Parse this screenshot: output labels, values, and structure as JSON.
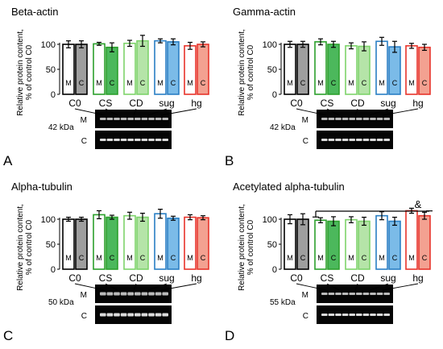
{
  "chart_data": [
    {
      "type": "bar",
      "panel_letter": "A",
      "title": "Beta-actin",
      "ylabel": [
        "Relative protein content,",
        "% of control C0"
      ],
      "ylim": [
        0,
        100
      ],
      "yticks": [
        "0",
        "50",
        "100"
      ],
      "categories": [
        "C0",
        "CS",
        "CD",
        "sug",
        "hg"
      ],
      "bar_labels": [
        "M",
        "C"
      ],
      "colors": [
        "#000000",
        "#2ca02c",
        "#7ed36b",
        "#2a7fc4",
        "#e8342b"
      ],
      "fills": [
        "#9e9e9e",
        "#4cb85c",
        "#b5e4a8",
        "#7bbbe8",
        "#f3a191"
      ],
      "series": [
        {
          "name": "M",
          "values": [
            100,
            101,
            102,
            107,
            97
          ],
          "errors": [
            7,
            3,
            6,
            4,
            7
          ]
        },
        {
          "name": "C",
          "values": [
            100,
            94,
            107,
            105,
            100
          ],
          "errors": [
            7,
            9,
            11,
            6,
            5
          ]
        }
      ],
      "blot": {
        "kda": "42 kDa",
        "rows": [
          "M",
          "C"
        ],
        "style": "light"
      }
    },
    {
      "type": "bar",
      "panel_letter": "B",
      "title": "Gamma-actin",
      "ylabel": [
        "Relative protein content,",
        "% of control C0"
      ],
      "ylim": [
        0,
        100
      ],
      "yticks": [
        "0",
        "50",
        "100"
      ],
      "categories": [
        "C0",
        "CS",
        "CD",
        "sug",
        "hg"
      ],
      "bar_labels": [
        "M",
        "C"
      ],
      "colors": [
        "#000000",
        "#2ca02c",
        "#7ed36b",
        "#2a7fc4",
        "#e8342b"
      ],
      "fills": [
        "#9e9e9e",
        "#4cb85c",
        "#b5e4a8",
        "#7bbbe8",
        "#f3a191"
      ],
      "series": [
        {
          "name": "M",
          "values": [
            100,
            105,
            97,
            106,
            97
          ],
          "errors": [
            6,
            6,
            6,
            8,
            5
          ]
        },
        {
          "name": "C",
          "values": [
            100,
            100,
            96,
            95,
            94
          ],
          "errors": [
            6,
            6,
            9,
            11,
            6
          ]
        }
      ],
      "blot": {
        "kda": "42 kDa",
        "rows": [
          "M",
          "C"
        ],
        "style": "light"
      }
    },
    {
      "type": "bar",
      "panel_letter": "C",
      "title": "Alpha-tubulin",
      "ylabel": [
        "Relative protein content,",
        "% of control C0"
      ],
      "ylim": [
        0,
        100
      ],
      "yticks": [
        "0",
        "50",
        "100"
      ],
      "categories": [
        "C0",
        "CS",
        "CD",
        "sug",
        "hg"
      ],
      "bar_labels": [
        "M",
        "C"
      ],
      "colors": [
        "#000000",
        "#2ca02c",
        "#7ed36b",
        "#2a7fc4",
        "#e8342b"
      ],
      "fills": [
        "#9e9e9e",
        "#4cb85c",
        "#b5e4a8",
        "#7bbbe8",
        "#f3a191"
      ],
      "series": [
        {
          "name": "M",
          "values": [
            100,
            109,
            107,
            111,
            104
          ],
          "errors": [
            4,
            8,
            7,
            9,
            5
          ]
        },
        {
          "name": "C",
          "values": [
            100,
            104,
            104,
            102,
            103
          ],
          "errors": [
            4,
            4,
            8,
            4,
            4
          ]
        }
      ],
      "blot": {
        "kda": "50 kDa",
        "rows": [
          "M",
          "C"
        ],
        "style": "bold"
      }
    },
    {
      "type": "bar",
      "panel_letter": "D",
      "title": "Acetylated alpha-tubulin",
      "ylabel": [
        "Relative protein content,",
        "% of control C0"
      ],
      "ylim": [
        0,
        100
      ],
      "yticks": [
        "0",
        "50",
        "100"
      ],
      "categories": [
        "C0",
        "CS",
        "CD",
        "sug",
        "hg"
      ],
      "bar_labels": [
        "M",
        "C"
      ],
      "colors": [
        "#000000",
        "#2ca02c",
        "#7ed36b",
        "#2a7fc4",
        "#e8342b"
      ],
      "fills": [
        "#9e9e9e",
        "#4cb85c",
        "#b5e4a8",
        "#7bbbe8",
        "#f3a191"
      ],
      "series": [
        {
          "name": "M",
          "values": [
            100,
            98,
            99,
            107,
            117
          ],
          "errors": [
            9,
            5,
            6,
            8,
            5
          ]
        },
        {
          "name": "C",
          "values": [
            100,
            96,
            96,
            96,
            107
          ],
          "errors": [
            11,
            9,
            8,
            8,
            7
          ]
        }
      ],
      "significance": {
        "symbol": "&",
        "from": "CS",
        "to": "hg"
      },
      "blot": {
        "kda": "55 kDa",
        "rows": [
          "M",
          "C"
        ],
        "style": "light"
      }
    }
  ]
}
